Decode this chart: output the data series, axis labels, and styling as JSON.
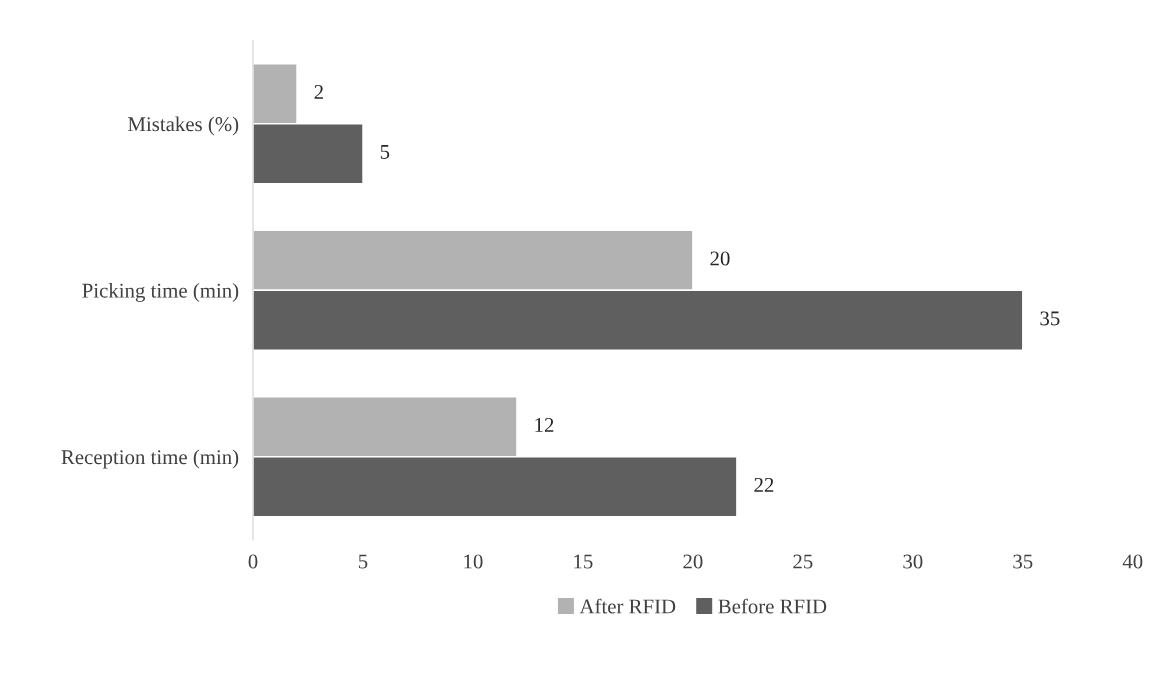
{
  "chart_data": {
    "type": "bar",
    "orientation": "horizontal",
    "categories": [
      "Mistakes (%)",
      "Picking time (min)",
      "Reception time (min)"
    ],
    "series": [
      {
        "name": "After RFID",
        "color": "#b2b2b2",
        "values": [
          2,
          20,
          12
        ]
      },
      {
        "name": "Before RFID",
        "color": "#5f5f5f",
        "values": [
          5,
          35,
          22
        ]
      }
    ],
    "xlim": [
      0,
      40
    ],
    "xticks": [
      0,
      5,
      10,
      15,
      20,
      25,
      30,
      35,
      40
    ],
    "data_labels": true,
    "grid": false,
    "legend": "bottom"
  }
}
